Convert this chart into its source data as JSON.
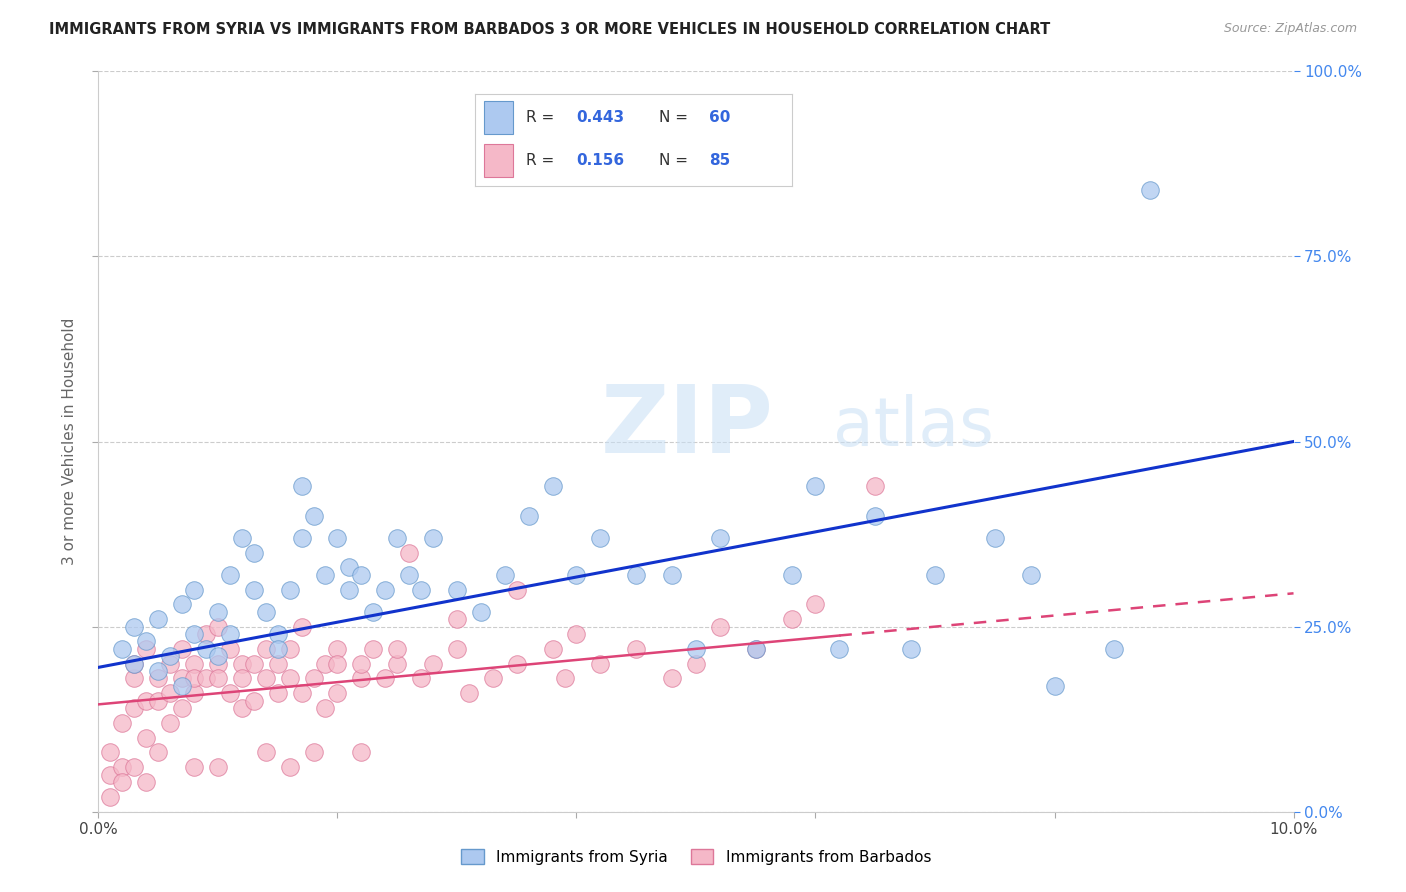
{
  "title": "IMMIGRANTS FROM SYRIA VS IMMIGRANTS FROM BARBADOS 3 OR MORE VEHICLES IN HOUSEHOLD CORRELATION CHART",
  "source": "Source: ZipAtlas.com",
  "ylabel": "3 or more Vehicles in Household",
  "xlim": [
    0.0,
    0.1
  ],
  "ylim": [
    0.0,
    1.0
  ],
  "xticks": [
    0.0,
    0.02,
    0.04,
    0.06,
    0.08,
    0.1
  ],
  "xtick_labels": [
    "0.0%",
    "",
    "",
    "",
    "",
    "10.0%"
  ],
  "ytick_labels_right": [
    "0.0%",
    "25.0%",
    "50.0%",
    "75.0%",
    "100.0%"
  ],
  "yticks_right": [
    0.0,
    0.25,
    0.5,
    0.75,
    1.0
  ],
  "syria_color": "#adc9f0",
  "barbados_color": "#f5b8c8",
  "syria_edge": "#6699cc",
  "barbados_edge": "#dd7799",
  "trend_syria_color": "#1133cc",
  "trend_barbados_color": "#dd4477",
  "legend_R_syria": "0.443",
  "legend_N_syria": "60",
  "legend_R_barbados": "0.156",
  "legend_N_barbados": "85",
  "watermark_zip": "ZIP",
  "watermark_atlas": "atlas",
  "syria_x": [
    0.002,
    0.003,
    0.003,
    0.004,
    0.005,
    0.005,
    0.006,
    0.007,
    0.007,
    0.008,
    0.008,
    0.009,
    0.01,
    0.01,
    0.011,
    0.011,
    0.012,
    0.013,
    0.013,
    0.014,
    0.015,
    0.015,
    0.016,
    0.017,
    0.017,
    0.018,
    0.019,
    0.02,
    0.021,
    0.021,
    0.022,
    0.023,
    0.024,
    0.025,
    0.026,
    0.027,
    0.028,
    0.03,
    0.032,
    0.034,
    0.036,
    0.038,
    0.04,
    0.042,
    0.045,
    0.048,
    0.05,
    0.052,
    0.055,
    0.058,
    0.06,
    0.062,
    0.065,
    0.068,
    0.07,
    0.075,
    0.078,
    0.08,
    0.085,
    0.088
  ],
  "syria_y": [
    0.22,
    0.25,
    0.2,
    0.23,
    0.19,
    0.26,
    0.21,
    0.17,
    0.28,
    0.24,
    0.3,
    0.22,
    0.21,
    0.27,
    0.32,
    0.24,
    0.37,
    0.3,
    0.35,
    0.27,
    0.24,
    0.22,
    0.3,
    0.37,
    0.44,
    0.4,
    0.32,
    0.37,
    0.3,
    0.33,
    0.32,
    0.27,
    0.3,
    0.37,
    0.32,
    0.3,
    0.37,
    0.3,
    0.27,
    0.32,
    0.4,
    0.44,
    0.32,
    0.37,
    0.32,
    0.32,
    0.22,
    0.37,
    0.22,
    0.32,
    0.44,
    0.22,
    0.4,
    0.22,
    0.32,
    0.37,
    0.32,
    0.17,
    0.22,
    0.84
  ],
  "barbados_x": [
    0.001,
    0.001,
    0.002,
    0.002,
    0.003,
    0.003,
    0.003,
    0.004,
    0.004,
    0.004,
    0.005,
    0.005,
    0.005,
    0.006,
    0.006,
    0.006,
    0.007,
    0.007,
    0.007,
    0.008,
    0.008,
    0.008,
    0.009,
    0.009,
    0.01,
    0.01,
    0.01,
    0.011,
    0.011,
    0.012,
    0.012,
    0.012,
    0.013,
    0.013,
    0.014,
    0.014,
    0.015,
    0.015,
    0.016,
    0.016,
    0.017,
    0.017,
    0.018,
    0.019,
    0.019,
    0.02,
    0.02,
    0.022,
    0.022,
    0.023,
    0.024,
    0.025,
    0.026,
    0.027,
    0.028,
    0.03,
    0.031,
    0.033,
    0.035,
    0.038,
    0.039,
    0.04,
    0.042,
    0.045,
    0.048,
    0.05,
    0.052,
    0.055,
    0.058,
    0.06,
    0.001,
    0.002,
    0.003,
    0.004,
    0.008,
    0.01,
    0.014,
    0.016,
    0.018,
    0.02,
    0.022,
    0.025,
    0.03,
    0.035,
    0.065
  ],
  "barbados_y": [
    0.05,
    0.08,
    0.12,
    0.06,
    0.18,
    0.14,
    0.2,
    0.15,
    0.22,
    0.1,
    0.08,
    0.15,
    0.18,
    0.2,
    0.12,
    0.16,
    0.18,
    0.14,
    0.22,
    0.2,
    0.16,
    0.18,
    0.24,
    0.18,
    0.2,
    0.25,
    0.18,
    0.22,
    0.16,
    0.2,
    0.14,
    0.18,
    0.2,
    0.15,
    0.22,
    0.18,
    0.16,
    0.2,
    0.22,
    0.18,
    0.16,
    0.25,
    0.18,
    0.2,
    0.14,
    0.16,
    0.22,
    0.18,
    0.2,
    0.22,
    0.18,
    0.2,
    0.35,
    0.18,
    0.2,
    0.22,
    0.16,
    0.18,
    0.2,
    0.22,
    0.18,
    0.24,
    0.2,
    0.22,
    0.18,
    0.2,
    0.25,
    0.22,
    0.26,
    0.28,
    0.02,
    0.04,
    0.06,
    0.04,
    0.06,
    0.06,
    0.08,
    0.06,
    0.08,
    0.2,
    0.08,
    0.22,
    0.26,
    0.3,
    0.44
  ],
  "trend_syria_x0": 0.0,
  "trend_syria_y0": 0.195,
  "trend_syria_x1": 0.1,
  "trend_syria_y1": 0.5,
  "trend_barbados_x0": 0.0,
  "trend_barbados_y0": 0.145,
  "trend_barbados_x1": 0.1,
  "trend_barbados_y1": 0.295,
  "trend_barbados_dash_start": 0.062
}
